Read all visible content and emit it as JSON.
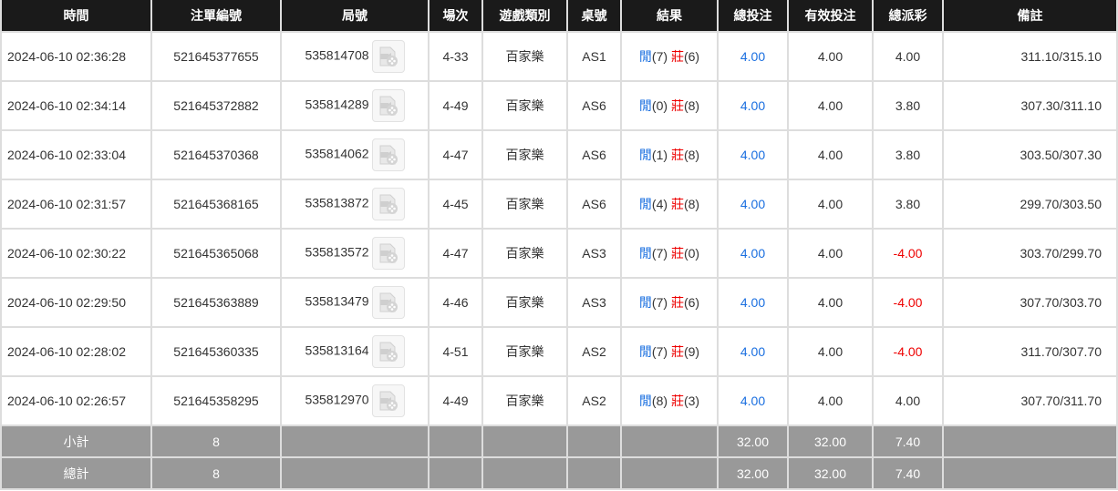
{
  "headers": [
    "時間",
    "注單編號",
    "局號",
    "場次",
    "遊戲類別",
    "桌號",
    "結果",
    "總投注",
    "有效投注",
    "總派彩",
    "備註"
  ],
  "rows": [
    {
      "time": "2024-06-10 02:36:28",
      "bet_id": "521645377655",
      "round": "535814708",
      "shoe": "4-33",
      "game": "百家樂",
      "table": "AS1",
      "player_label": "閒",
      "player": "(7)",
      "banker_label": "莊",
      "banker": "(6)",
      "total": "4.00",
      "valid": "4.00",
      "payout": "4.00",
      "payout_negative": false,
      "note": "311.10/315.10"
    },
    {
      "time": "2024-06-10 02:34:14",
      "bet_id": "521645372882",
      "round": "535814289",
      "shoe": "4-49",
      "game": "百家樂",
      "table": "AS6",
      "player_label": "閒",
      "player": "(0)",
      "banker_label": "莊",
      "banker": "(8)",
      "total": "4.00",
      "valid": "4.00",
      "payout": "3.80",
      "payout_negative": false,
      "note": "307.30/311.10"
    },
    {
      "time": "2024-06-10 02:33:04",
      "bet_id": "521645370368",
      "round": "535814062",
      "shoe": "4-47",
      "game": "百家樂",
      "table": "AS6",
      "player_label": "閒",
      "player": "(1)",
      "banker_label": "莊",
      "banker": "(8)",
      "total": "4.00",
      "valid": "4.00",
      "payout": "3.80",
      "payout_negative": false,
      "note": "303.50/307.30"
    },
    {
      "time": "2024-06-10 02:31:57",
      "bet_id": "521645368165",
      "round": "535813872",
      "shoe": "4-45",
      "game": "百家樂",
      "table": "AS6",
      "player_label": "閒",
      "player": "(4)",
      "banker_label": "莊",
      "banker": "(8)",
      "total": "4.00",
      "valid": "4.00",
      "payout": "3.80",
      "payout_negative": false,
      "note": "299.70/303.50"
    },
    {
      "time": "2024-06-10 02:30:22",
      "bet_id": "521645365068",
      "round": "535813572",
      "shoe": "4-47",
      "game": "百家樂",
      "table": "AS3",
      "player_label": "閒",
      "player": "(7)",
      "banker_label": "莊",
      "banker": "(0)",
      "total": "4.00",
      "valid": "4.00",
      "payout": "-4.00",
      "payout_negative": true,
      "note": "303.70/299.70"
    },
    {
      "time": "2024-06-10 02:29:50",
      "bet_id": "521645363889",
      "round": "535813479",
      "shoe": "4-46",
      "game": "百家樂",
      "table": "AS3",
      "player_label": "閒",
      "player": "(7)",
      "banker_label": "莊",
      "banker": "(6)",
      "total": "4.00",
      "valid": "4.00",
      "payout": "-4.00",
      "payout_negative": true,
      "note": "307.70/303.70"
    },
    {
      "time": "2024-06-10 02:28:02",
      "bet_id": "521645360335",
      "round": "535813164",
      "shoe": "4-51",
      "game": "百家樂",
      "table": "AS2",
      "player_label": "閒",
      "player": "(7)",
      "banker_label": "莊",
      "banker": "(9)",
      "total": "4.00",
      "valid": "4.00",
      "payout": "-4.00",
      "payout_negative": true,
      "note": "311.70/307.70"
    },
    {
      "time": "2024-06-10 02:26:57",
      "bet_id": "521645358295",
      "round": "535812970",
      "shoe": "4-49",
      "game": "百家樂",
      "table": "AS2",
      "player_label": "閒",
      "player": "(8)",
      "banker_label": "莊",
      "banker": "(3)",
      "total": "4.00",
      "valid": "4.00",
      "payout": "4.00",
      "payout_negative": false,
      "note": "307.70/311.70"
    }
  ],
  "subtotal": {
    "label": "小計",
    "count": "8",
    "total": "32.00",
    "valid": "32.00",
    "payout": "7.40"
  },
  "grandtotal": {
    "label": "總計",
    "count": "8",
    "total": "32.00",
    "valid": "32.00",
    "payout": "7.40"
  },
  "icons": {
    "replay": "video-replay-icon"
  },
  "colors": {
    "header_bg": "#1a1a1a",
    "footer_bg": "#999999",
    "blue": "#1a6fe0",
    "red": "#e00000"
  }
}
